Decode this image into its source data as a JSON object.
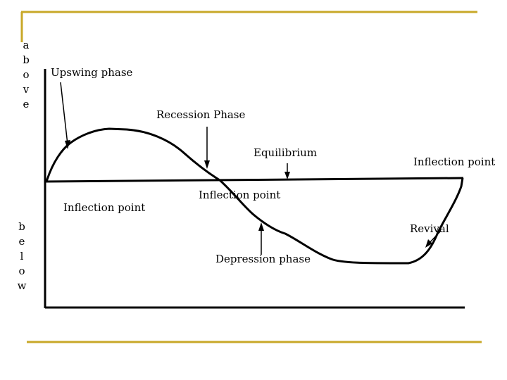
{
  "axis_labels": {
    "above": [
      "a",
      "b",
      "o",
      "v",
      "e"
    ],
    "below": [
      "b",
      "e",
      "l",
      "o",
      "w"
    ]
  },
  "labels": {
    "upswing": "Upswing phase",
    "recession": "Recession Phase",
    "equilibrium": "Equilibrium",
    "inflection_right": "Inflection point",
    "inflection_middle": "Inflection point",
    "inflection_left": "Inflection point",
    "revival": "Revival",
    "depression": "Depression phase"
  },
  "colors": {
    "frame_accent": "#c8a828",
    "ink": "#000000"
  }
}
